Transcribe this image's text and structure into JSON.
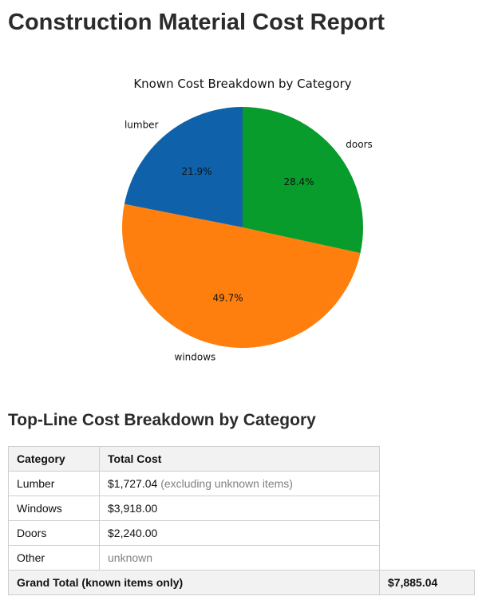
{
  "page": {
    "title": "Construction Material Cost Report",
    "section_title": "Top-Line Cost Breakdown by Category"
  },
  "chart_data": {
    "type": "pie",
    "title": "Known Cost Breakdown by Category",
    "start": "top (12 o'clock)",
    "direction": "counterclockwise",
    "slices": [
      {
        "label": "lumber",
        "value": 1727.04,
        "pct_label": "21.9%",
        "color": "#0f62a9"
      },
      {
        "label": "windows",
        "value": 3918.0,
        "pct_label": "49.7%",
        "color": "#ff7f0e"
      },
      {
        "label": "doors",
        "value": 2240.0,
        "pct_label": "28.4%",
        "color": "#089c2c"
      }
    ]
  },
  "table": {
    "headers": [
      "Category",
      "Total Cost"
    ],
    "rows": [
      {
        "category": "Lumber",
        "cost": "$1,727.04",
        "note": "(excluding unknown items)"
      },
      {
        "category": "Windows",
        "cost": "$3,918.00",
        "note": ""
      },
      {
        "category": "Doors",
        "cost": "$2,240.00",
        "note": ""
      },
      {
        "category": "Other",
        "cost": "",
        "note": "unknown"
      }
    ],
    "total_label": "Grand Total (known items only)",
    "total_value": "$7,885.04"
  }
}
